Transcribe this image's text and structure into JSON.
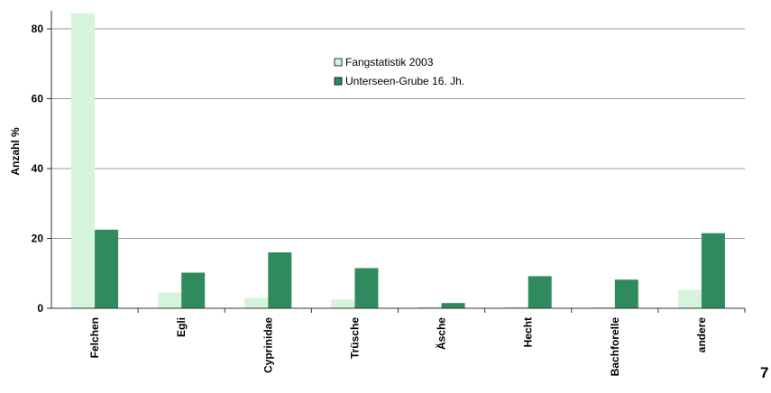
{
  "page_number": "7",
  "colors": {
    "series1": "#d6f3dc",
    "series2": "#2f8b5e",
    "grid": "#9a9a9a",
    "axis": "#333333"
  },
  "chart_data": {
    "type": "bar",
    "ylabel": "Anzahl %",
    "xlabel": "",
    "title": "",
    "ylim": [
      0,
      85
    ],
    "yticks": [
      0,
      20,
      40,
      60,
      80
    ],
    "grid": true,
    "legend_placement": "top-center",
    "categories": [
      "Felchen",
      "Egli",
      "Cyprinidae",
      "Trüsche",
      "Äsche",
      "Hecht",
      "Bachforelle",
      "andere"
    ],
    "series": [
      {
        "name": "Fangstatistik 2003",
        "values": [
          84.5,
          4.5,
          3,
          2.5,
          0.5,
          0.5,
          0.3,
          5.3
        ]
      },
      {
        "name": "Unterseen-Grube 16. Jh.",
        "values": [
          22.5,
          10.2,
          16,
          11.5,
          1.5,
          9.2,
          8.2,
          21.5
        ]
      }
    ]
  }
}
